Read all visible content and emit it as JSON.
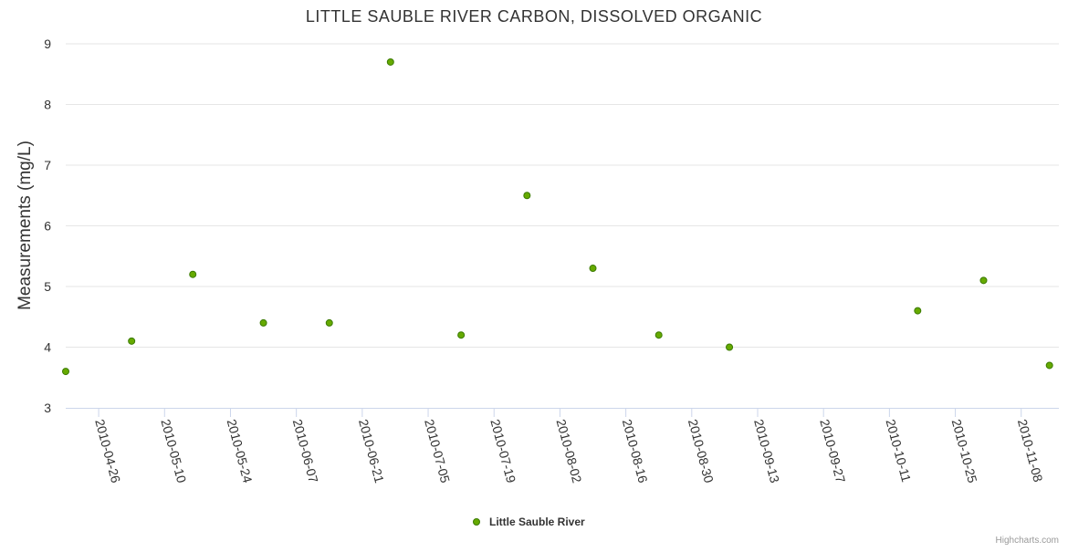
{
  "chart_data": {
    "type": "scatter",
    "title": "LITTLE SAUBLE RIVER CARBON, DISSOLVED ORGANIC",
    "xlabel": "",
    "ylabel": "Measurements (mg/L)",
    "ylim": [
      3,
      9
    ],
    "yticks": [
      3,
      4,
      5,
      6,
      7,
      8,
      9
    ],
    "x_type": "date",
    "xlim": [
      "2010-04-19",
      "2010-11-16"
    ],
    "xticks": [
      "2010-04-26",
      "2010-05-10",
      "2010-05-24",
      "2010-06-07",
      "2010-06-21",
      "2010-07-05",
      "2010-07-19",
      "2010-08-02",
      "2010-08-16",
      "2010-08-30",
      "2010-09-13",
      "2010-09-27",
      "2010-10-11",
      "2010-10-25",
      "2010-11-08"
    ],
    "grid": true,
    "legend": "bottom-center",
    "color": "#66aa00",
    "series": [
      {
        "name": "Little Sauble River",
        "points": [
          {
            "x": "2010-04-19",
            "y": 3.6
          },
          {
            "x": "2010-05-03",
            "y": 4.1
          },
          {
            "x": "2010-05-16",
            "y": 5.2
          },
          {
            "x": "2010-05-31",
            "y": 4.4
          },
          {
            "x": "2010-06-14",
            "y": 4.4
          },
          {
            "x": "2010-06-27",
            "y": 8.7
          },
          {
            "x": "2010-07-12",
            "y": 4.2
          },
          {
            "x": "2010-07-26",
            "y": 6.5
          },
          {
            "x": "2010-08-09",
            "y": 5.3
          },
          {
            "x": "2010-08-23",
            "y": 4.2
          },
          {
            "x": "2010-09-07",
            "y": 4.0
          },
          {
            "x": "2010-10-17",
            "y": 4.6
          },
          {
            "x": "2010-10-31",
            "y": 5.1
          },
          {
            "x": "2010-11-14",
            "y": 3.7
          }
        ]
      }
    ]
  },
  "credits": "Highcharts.com"
}
